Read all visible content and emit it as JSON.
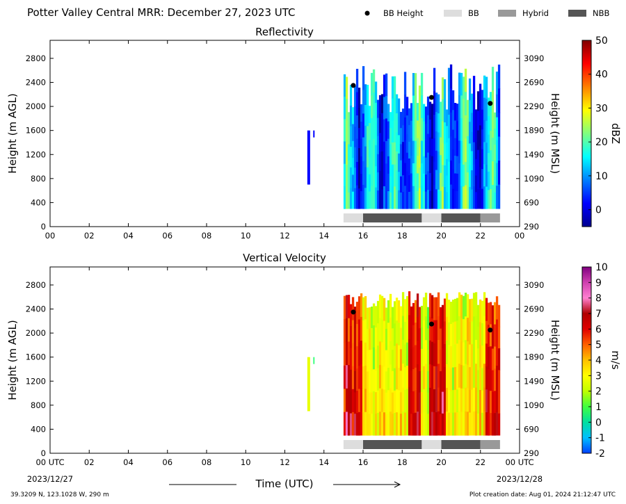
{
  "header": {
    "title": "Potter Valley Central MRR:  December 27, 2023 UTC",
    "legend": [
      {
        "label": "BB Height",
        "kind": "dot",
        "color": "#000000"
      },
      {
        "label": "BB",
        "kind": "swatch",
        "color": "#dddddd"
      },
      {
        "label": "Hybrid",
        "kind": "swatch",
        "color": "#999999"
      },
      {
        "label": "NBB",
        "kind": "swatch",
        "color": "#555555"
      }
    ]
  },
  "chart_data": [
    {
      "type": "heatmap",
      "title": "Reflectivity",
      "ylabel": "Height (m AGL)",
      "ylabel_right": "Height (m MSL)",
      "x_ticks": [
        "00",
        "02",
        "04",
        "06",
        "08",
        "10",
        "12",
        "14",
        "16",
        "18",
        "20",
        "22",
        "00"
      ],
      "xlim": [
        0,
        24
      ],
      "ylim": [
        0,
        3100
      ],
      "y_ticks": [
        0,
        400,
        800,
        1200,
        1600,
        2000,
        2400,
        2800
      ],
      "y_ticks_right": [
        "290",
        "690",
        "1090",
        "1490",
        "1890",
        "2290",
        "2690",
        "3090"
      ],
      "colorbar": {
        "label": "dBZ",
        "ticks": [
          "0",
          "10",
          "20",
          "30",
          "40",
          "50"
        ],
        "range": [
          -5,
          50
        ],
        "stops": [
          "#00008f",
          "#0000ff",
          "#0080ff",
          "#00ffff",
          "#80ff80",
          "#ffff00",
          "#ff8000",
          "#ff0000",
          "#800000"
        ]
      },
      "bright_band_height": [
        {
          "x": 15.5,
          "y": 2350
        },
        {
          "x": 19.5,
          "y": 2150
        },
        {
          "x": 22.5,
          "y": 2050
        }
      ],
      "bb_classification": [
        {
          "start": 15.0,
          "end": 16.0,
          "class": "BB"
        },
        {
          "start": 16.0,
          "end": 19.0,
          "class": "NBB"
        },
        {
          "start": 19.0,
          "end": 20.0,
          "class": "BB"
        },
        {
          "start": 20.0,
          "end": 22.0,
          "class": "NBB"
        },
        {
          "start": 22.0,
          "end": 23.0,
          "class": "Hybrid"
        }
      ]
    },
    {
      "type": "heatmap",
      "title": "Vertical Velocity",
      "ylabel": "Height (m AGL)",
      "ylabel_right": "Height (m MSL)",
      "x_ticks": [
        "00 UTC",
        "02",
        "04",
        "06",
        "08",
        "10",
        "12",
        "14",
        "16",
        "18",
        "20",
        "22",
        "00 UTC"
      ],
      "xlim": [
        0,
        24
      ],
      "ylim": [
        0,
        3100
      ],
      "y_ticks": [
        0,
        400,
        800,
        1200,
        1600,
        2000,
        2400,
        2800
      ],
      "y_ticks_right": [
        "290",
        "690",
        "1090",
        "1490",
        "1890",
        "2290",
        "2690",
        "3090"
      ],
      "colorbar": {
        "label": "m/s",
        "ticks": [
          "-2",
          "-1",
          "0",
          "1",
          "2",
          "3",
          "4",
          "5",
          "6",
          "7",
          "8",
          "9",
          "10"
        ],
        "range": [
          -2,
          10
        ],
        "stops": [
          "#0040ff",
          "#00c0ff",
          "#00e0a0",
          "#40ff40",
          "#c0ff00",
          "#ffff00",
          "#ffc000",
          "#ff6000",
          "#e00000",
          "#b00000",
          "#ff80d0",
          "#d040b0",
          "#800080"
        ]
      },
      "bright_band_height": [
        {
          "x": 15.5,
          "y": 2350
        },
        {
          "x": 19.5,
          "y": 2150
        },
        {
          "x": 22.5,
          "y": 2050
        }
      ],
      "bb_classification": [
        {
          "start": 15.0,
          "end": 16.0,
          "class": "BB"
        },
        {
          "start": 16.0,
          "end": 19.0,
          "class": "NBB"
        },
        {
          "start": 19.0,
          "end": 20.0,
          "class": "BB"
        },
        {
          "start": 20.0,
          "end": 22.0,
          "class": "NBB"
        },
        {
          "start": 22.0,
          "end": 23.0,
          "class": "Hybrid"
        }
      ]
    }
  ],
  "footer": {
    "date_start": "2023/12/27",
    "date_end": "2023/12/28",
    "xlabel": "Time (UTC)",
    "location": "39.3209 N, 123.1028 W, 290 m",
    "creation": "Plot creation date: Aug 01, 2024 21:12:47 UTC"
  }
}
